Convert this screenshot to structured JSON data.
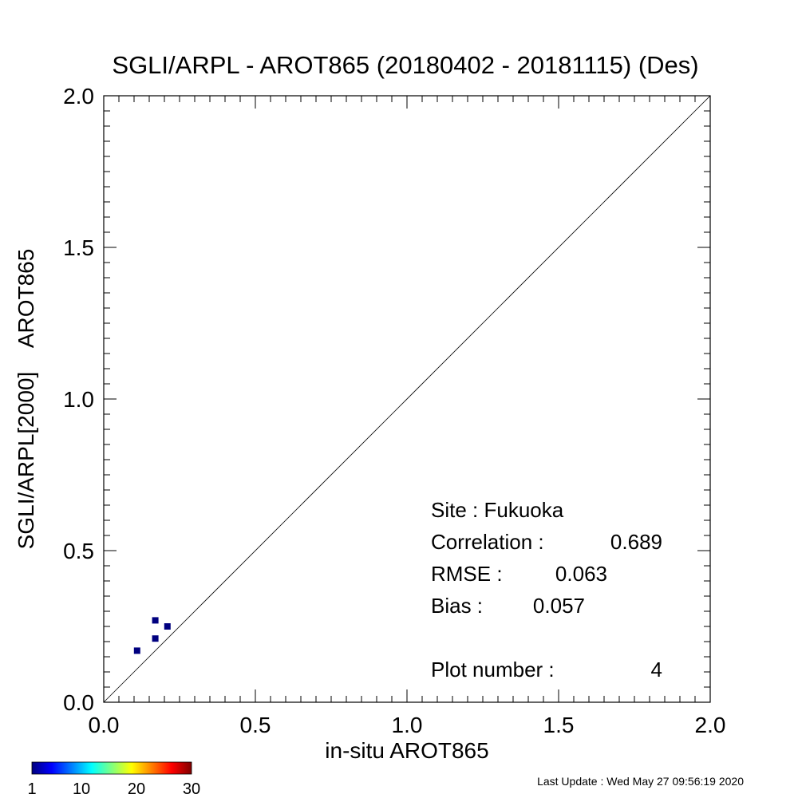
{
  "chart_data": {
    "type": "scatter",
    "title": "SGLI/ARPL - AROT865 (20180402 - 20181115) (Des)",
    "xlabel": "in-situ AROT865",
    "ylabel": "SGLI/ARPL[2000]    AROT865",
    "xlim": [
      0.0,
      2.0
    ],
    "ylim": [
      0.0,
      2.0
    ],
    "x_ticks": [
      "0.0",
      "0.5",
      "1.0",
      "1.5",
      "2.0"
    ],
    "y_ticks": [
      "0.0",
      "0.5",
      "1.0",
      "1.5",
      "2.0"
    ],
    "reference_line": "1:1",
    "points": [
      {
        "x": 0.11,
        "y": 0.17
      },
      {
        "x": 0.17,
        "y": 0.21
      },
      {
        "x": 0.17,
        "y": 0.27
      },
      {
        "x": 0.21,
        "y": 0.25
      }
    ],
    "point_color": "#00007f",
    "colorbar": {
      "tick_labels": [
        "1",
        "10",
        "20",
        "30"
      ],
      "min": 1,
      "max": 30,
      "colormap": "jet"
    },
    "stats": {
      "site": "Site : Fukuoka",
      "correlation_label": "Correlation :",
      "correlation_value": "0.689",
      "rmse_label": "RMSE :",
      "rmse_value": "0.063",
      "bias_label": "Bias :",
      "bias_value": "0.057",
      "plot_number_label": "Plot number :",
      "plot_number_value": "4"
    },
    "last_update": "Last Update : Wed May 27 09:56:19 2020"
  }
}
